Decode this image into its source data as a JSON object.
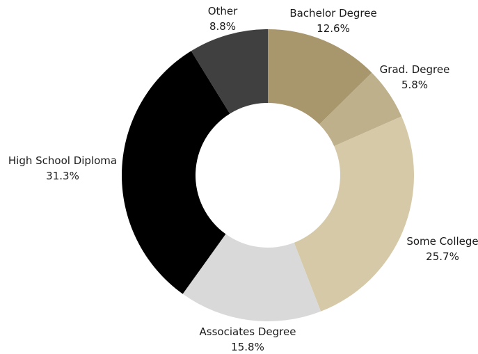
{
  "chart_data": {
    "type": "pie",
    "donut": true,
    "title": "",
    "legend": "none",
    "slices": [
      {
        "label": "Bachelor Degree",
        "value": 12.6,
        "display": "12.6%",
        "color": "#a8966d"
      },
      {
        "label": "Grad. Degree",
        "value": 5.8,
        "display": "5.8%",
        "color": "#bfb08c"
      },
      {
        "label": "Some College",
        "value": 25.7,
        "display": "25.7%",
        "color": "#d5c9a8"
      },
      {
        "label": "Associates Degree",
        "value": 15.8,
        "display": "15.8%",
        "color": "#d9d9d9"
      },
      {
        "label": "High School Diploma",
        "value": 31.3,
        "display": "31.3%",
        "color": "#000000"
      },
      {
        "label": "Other",
        "value": 8.8,
        "display": "8.8%",
        "color": "#404040"
      }
    ]
  }
}
